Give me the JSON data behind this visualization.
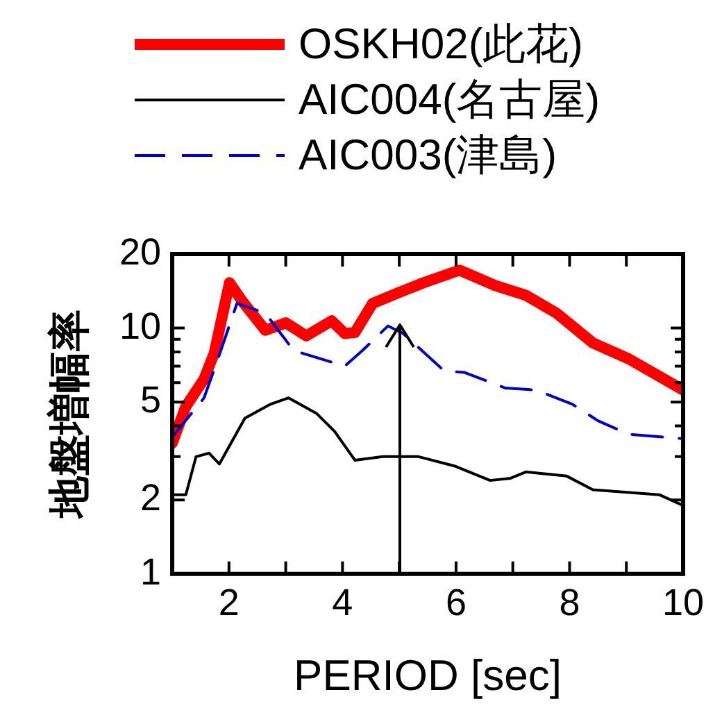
{
  "chart_data": {
    "type": "line",
    "xlabel": "PERIOD [sec]",
    "ylabel": "地盤増幅率",
    "log": "y",
    "grid": false,
    "legend": "top",
    "marker": "none",
    "xlim": [
      1,
      10
    ],
    "xticks": [
      {
        "value": 2,
        "label": "2"
      },
      {
        "value": 3,
        "label": null
      },
      {
        "value": 4,
        "label": "4"
      },
      {
        "value": 5,
        "label": null
      },
      {
        "value": 6,
        "label": "6"
      },
      {
        "value": 7,
        "label": null
      },
      {
        "value": 8,
        "label": "8"
      },
      {
        "value": 9,
        "label": null
      },
      {
        "value": 10,
        "label": "10"
      }
    ],
    "ylim": [
      1,
      20
    ],
    "yticks": [
      1,
      2,
      {
        "value": 3,
        "label": null
      },
      {
        "value": 4,
        "label": null
      },
      5,
      {
        "value": 6,
        "label": null
      },
      {
        "value": 7,
        "label": null
      },
      {
        "value": 8,
        "label": null
      },
      {
        "value": 9,
        "label": null
      },
      10,
      20
    ],
    "ref_lines": [
      {
        "axis": "x",
        "value": 5,
        "color": "#000000",
        "line_style": "solid"
      }
    ],
    "series": [
      {
        "name": "OSKH02(此花)",
        "color": "#ff0000",
        "line_style": "solid",
        "x": [
          1,
          1.24,
          1.56,
          1.74,
          2.01,
          2.23,
          2.64,
          3.0,
          3.36,
          3.81,
          4.04,
          4.22,
          4.53,
          4.98,
          5.43,
          6.06,
          6.69,
          7.23,
          7.77,
          8.41,
          9.04,
          10
        ],
        "values": [
          3.4,
          4.8,
          6.2,
          7.9,
          15.3,
          12.9,
          9.8,
          10.5,
          9.3,
          10.7,
          9.5,
          9.6,
          12.6,
          13.9,
          15.3,
          17.2,
          14.9,
          13.6,
          11.5,
          8.7,
          7.5,
          5.6
        ]
      },
      {
        "name": "AIC004(名古屋)",
        "color": "#000000",
        "line_style": "solid",
        "x": [
          1,
          1.24,
          1.42,
          1.65,
          1.83,
          2.28,
          2.73,
          3.05,
          3.54,
          3.86,
          4.22,
          4.71,
          5.34,
          5.97,
          6.6,
          6.96,
          7.23,
          7.95,
          8.41,
          9.58,
          10
        ],
        "values": [
          2.1,
          2.1,
          3.0,
          3.1,
          2.8,
          4.3,
          4.9,
          5.2,
          4.5,
          3.8,
          2.9,
          3.0,
          3.0,
          2.75,
          2.4,
          2.45,
          2.6,
          2.5,
          2.2,
          2.1,
          1.9
        ]
      },
      {
        "name": "AIC003(津島)",
        "color": "#0000cc",
        "line_style": "dashed",
        "x": [
          1,
          1.56,
          1.78,
          2.14,
          2.64,
          3.14,
          4.04,
          4.35,
          4.8,
          5.07,
          5.79,
          6.15,
          6.87,
          7.41,
          8.05,
          8.5,
          9.04,
          10
        ],
        "values": [
          3.6,
          5.2,
          7.2,
          12.6,
          11.5,
          8.1,
          7.0,
          8.1,
          10.2,
          9.5,
          6.7,
          6.6,
          5.7,
          5.6,
          4.9,
          4.2,
          3.7,
          3.55
        ]
      }
    ]
  }
}
